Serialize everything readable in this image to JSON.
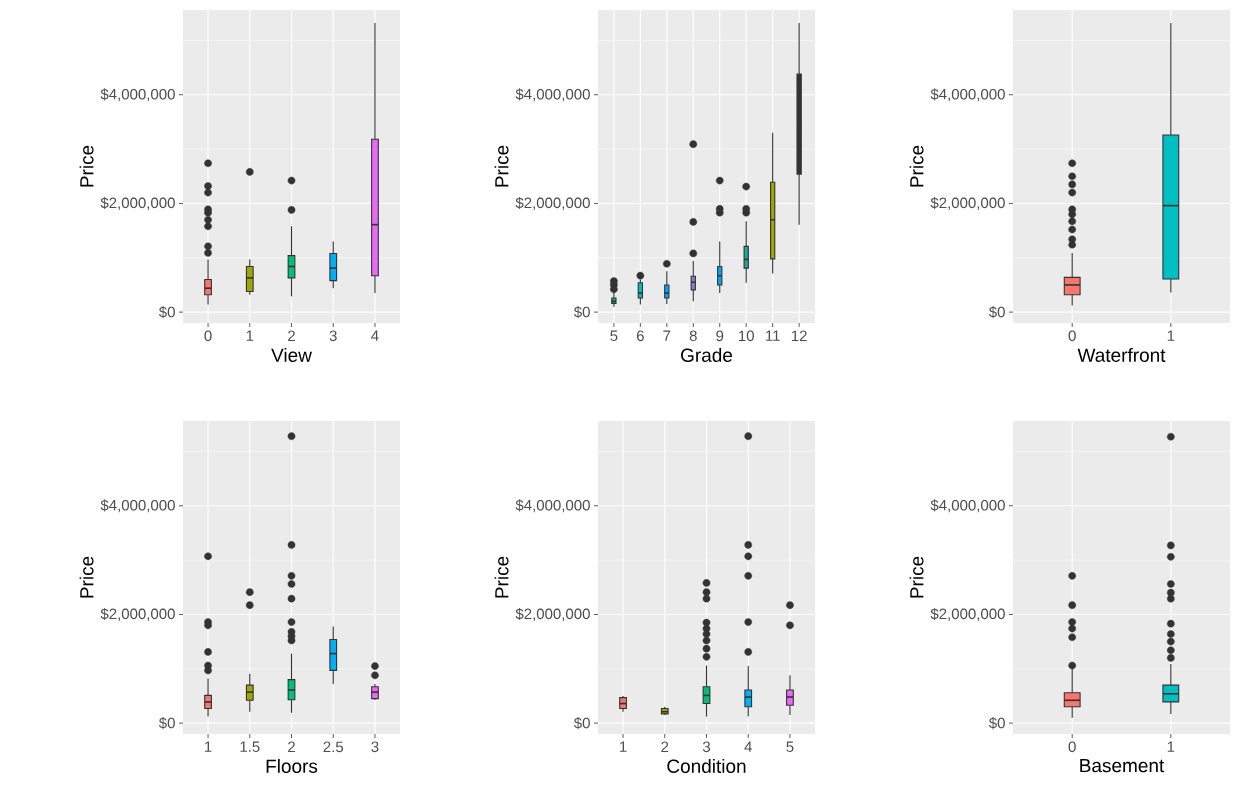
{
  "chart_data": [
    {
      "type": "box",
      "xlabel": "View",
      "ylabel": "Price",
      "categories": [
        "0",
        "1",
        "2",
        "3",
        "4"
      ],
      "colors": [
        "#F8766D",
        "#A3A500",
        "#00BF7D",
        "#00B0F6",
        "#E76BF3"
      ],
      "ylim": [
        -200000,
        5560000
      ],
      "yticks": [
        {
          "value": 0,
          "label": "$0"
        },
        {
          "value": 2000000,
          "label": "$2,000,000"
        },
        {
          "value": 4000000,
          "label": "$4,000,000"
        }
      ],
      "grid": true,
      "boxes": [
        {
          "low": 140000,
          "q1": 320000,
          "median": 440000,
          "q3": 600000,
          "high": 970000,
          "outliers": [
            1090000,
            1210000,
            1580000,
            1700000,
            1830000,
            1890000,
            2200000,
            2320000,
            2740000
          ]
        },
        {
          "low": 320000,
          "q1": 380000,
          "median": 630000,
          "q3": 840000,
          "high": 970000,
          "outliers": [
            2580000
          ]
        },
        {
          "low": 290000,
          "q1": 630000,
          "median": 840000,
          "q3": 1040000,
          "high": 1580000,
          "outliers": [
            1880000,
            2420000
          ]
        },
        {
          "low": 440000,
          "q1": 580000,
          "median": 810000,
          "q3": 1080000,
          "high": 1300000
        },
        {
          "low": 350000,
          "q1": 670000,
          "median": 1610000,
          "q3": 3180000,
          "high": 5320000
        }
      ]
    },
    {
      "type": "box",
      "xlabel": "Grade",
      "ylabel": "Price",
      "categories": [
        "5",
        "6",
        "7",
        "8",
        "9",
        "10",
        "11",
        "12"
      ],
      "colors": [
        "#00BE67",
        "#00BFC4",
        "#00A9FF",
        "#7F80D0",
        "#00A9FF",
        "#1FA89C",
        "#A3A500",
        "#333333"
      ],
      "ylim": [
        -200000,
        5560000
      ],
      "yticks": [
        {
          "value": 0,
          "label": "$0"
        },
        {
          "value": 2000000,
          "label": "$2,000,000"
        },
        {
          "value": 4000000,
          "label": "$4,000,000"
        }
      ],
      "grid": true,
      "boxes": [
        {
          "low": 100000,
          "q1": 160000,
          "median": 200000,
          "q3": 260000,
          "high": 350000,
          "outliers": [
            420000,
            500000,
            570000
          ]
        },
        {
          "low": 140000,
          "q1": 260000,
          "median": 350000,
          "q3": 540000,
          "high": 600000,
          "outliers": [
            670000
          ]
        },
        {
          "low": 150000,
          "q1": 260000,
          "median": 350000,
          "q3": 500000,
          "high": 750000,
          "outliers": [
            890000
          ]
        },
        {
          "low": 200000,
          "q1": 410000,
          "median": 550000,
          "q3": 660000,
          "high": 940000,
          "outliers": [
            1080000,
            1660000,
            3090000
          ]
        },
        {
          "low": 350000,
          "q1": 500000,
          "median": 670000,
          "q3": 840000,
          "high": 1300000,
          "outliers": [
            1830000,
            1900000,
            2420000
          ]
        },
        {
          "low": 540000,
          "q1": 810000,
          "median": 970000,
          "q3": 1210000,
          "high": 1670000,
          "outliers": [
            1830000,
            1900000,
            2310000
          ]
        },
        {
          "low": 710000,
          "q1": 980000,
          "median": 1700000,
          "q3": 2390000,
          "high": 3300000
        },
        {
          "low": 1610000,
          "q1": 2540000,
          "median": 3400000,
          "q3": 4380000,
          "high": 5320000
        }
      ]
    },
    {
      "type": "box",
      "xlabel": "Waterfront",
      "ylabel": "Price",
      "categories": [
        "0",
        "1"
      ],
      "colors": [
        "#F8766D",
        "#00BFC4"
      ],
      "ylim": [
        -200000,
        5560000
      ],
      "yticks": [
        {
          "value": 0,
          "label": "$0"
        },
        {
          "value": 2000000,
          "label": "$2,000,000"
        },
        {
          "value": 4000000,
          "label": "$4,000,000"
        }
      ],
      "grid": true,
      "boxes": [
        {
          "low": 120000,
          "q1": 320000,
          "median": 500000,
          "q3": 640000,
          "high": 1090000,
          "outliers": [
            1240000,
            1340000,
            1520000,
            1670000,
            1800000,
            1890000,
            2200000,
            2350000,
            2500000,
            2740000
          ]
        },
        {
          "low": 360000,
          "q1": 610000,
          "median": 1960000,
          "q3": 3260000,
          "high": 5320000
        }
      ]
    },
    {
      "type": "box",
      "xlabel": "Floors",
      "ylabel": "Price",
      "categories": [
        "1",
        "1.5",
        "2",
        "2.5",
        "3"
      ],
      "colors": [
        "#F8766D",
        "#A3A500",
        "#00BF7D",
        "#00B0F6",
        "#E76BF3"
      ],
      "ylim": [
        -200000,
        5560000
      ],
      "yticks": [
        {
          "value": 0,
          "label": "$0"
        },
        {
          "value": 2000000,
          "label": "$2,000,000"
        },
        {
          "value": 4000000,
          "label": "$4,000,000"
        }
      ],
      "grid": true,
      "boxes": [
        {
          "low": 120000,
          "q1": 270000,
          "median": 390000,
          "q3": 510000,
          "high": 820000,
          "outliers": [
            970000,
            1060000,
            1310000,
            1800000,
            1860000,
            3070000
          ]
        },
        {
          "low": 210000,
          "q1": 420000,
          "median": 570000,
          "q3": 700000,
          "high": 910000,
          "outliers": [
            2170000,
            2410000
          ]
        },
        {
          "low": 190000,
          "q1": 430000,
          "median": 610000,
          "q3": 800000,
          "high": 1280000,
          "outliers": [
            1520000,
            1600000,
            1680000,
            1860000,
            2290000,
            2560000,
            2710000,
            3280000,
            5280000
          ]
        },
        {
          "low": 720000,
          "q1": 970000,
          "median": 1280000,
          "q3": 1540000,
          "high": 1780000
        },
        {
          "low": 430000,
          "q1": 450000,
          "median": 570000,
          "q3": 670000,
          "high": 720000,
          "outliers": [
            880000,
            1050000
          ]
        }
      ]
    },
    {
      "type": "box",
      "xlabel": "Condition",
      "ylabel": "Price",
      "categories": [
        "1",
        "2",
        "3",
        "4",
        "5"
      ],
      "colors": [
        "#F8766D",
        "#A3A500",
        "#00BF7D",
        "#00B0F6",
        "#E76BF3"
      ],
      "ylim": [
        -200000,
        5560000
      ],
      "yticks": [
        {
          "value": 0,
          "label": "$0"
        },
        {
          "value": 2000000,
          "label": "$2,000,000"
        },
        {
          "value": 4000000,
          "label": "$4,000,000"
        }
      ],
      "grid": true,
      "boxes": [
        {
          "low": 210000,
          "q1": 270000,
          "median": 360000,
          "q3": 470000,
          "high": 500000
        },
        {
          "low": 150000,
          "q1": 170000,
          "median": 210000,
          "q3": 270000,
          "high": 300000
        },
        {
          "low": 120000,
          "q1": 360000,
          "median": 510000,
          "q3": 670000,
          "high": 1060000,
          "outliers": [
            1220000,
            1370000,
            1520000,
            1640000,
            1740000,
            1850000,
            2290000,
            2410000,
            2580000
          ]
        },
        {
          "low": 120000,
          "q1": 300000,
          "median": 480000,
          "q3": 610000,
          "high": 1050000,
          "outliers": [
            1310000,
            1860000,
            2710000,
            3070000,
            3280000,
            5280000
          ]
        },
        {
          "low": 150000,
          "q1": 330000,
          "median": 480000,
          "q3": 610000,
          "high": 880000,
          "outliers": [
            1800000,
            2170000
          ]
        }
      ]
    },
    {
      "type": "box",
      "xlabel": "Basement",
      "ylabel": "Price",
      "categories": [
        "0",
        "1"
      ],
      "colors": [
        "#F8766D",
        "#00BFC4"
      ],
      "ylim": [
        -200000,
        5560000
      ],
      "yticks": [
        {
          "value": 0,
          "label": "$0"
        },
        {
          "value": 2000000,
          "label": "$2,000,000"
        },
        {
          "value": 4000000,
          "label": "$4,000,000"
        }
      ],
      "grid": true,
      "boxes": [
        {
          "low": 100000,
          "q1": 300000,
          "median": 420000,
          "q3": 560000,
          "high": 1000000,
          "outliers": [
            1060000,
            1580000,
            1740000,
            1860000,
            2170000,
            2710000
          ]
        },
        {
          "low": 170000,
          "q1": 390000,
          "median": 540000,
          "q3": 700000,
          "high": 1090000,
          "outliers": [
            1200000,
            1340000,
            1500000,
            1640000,
            1830000,
            2290000,
            2400000,
            2560000,
            3060000,
            3270000,
            5270000
          ]
        }
      ]
    }
  ]
}
